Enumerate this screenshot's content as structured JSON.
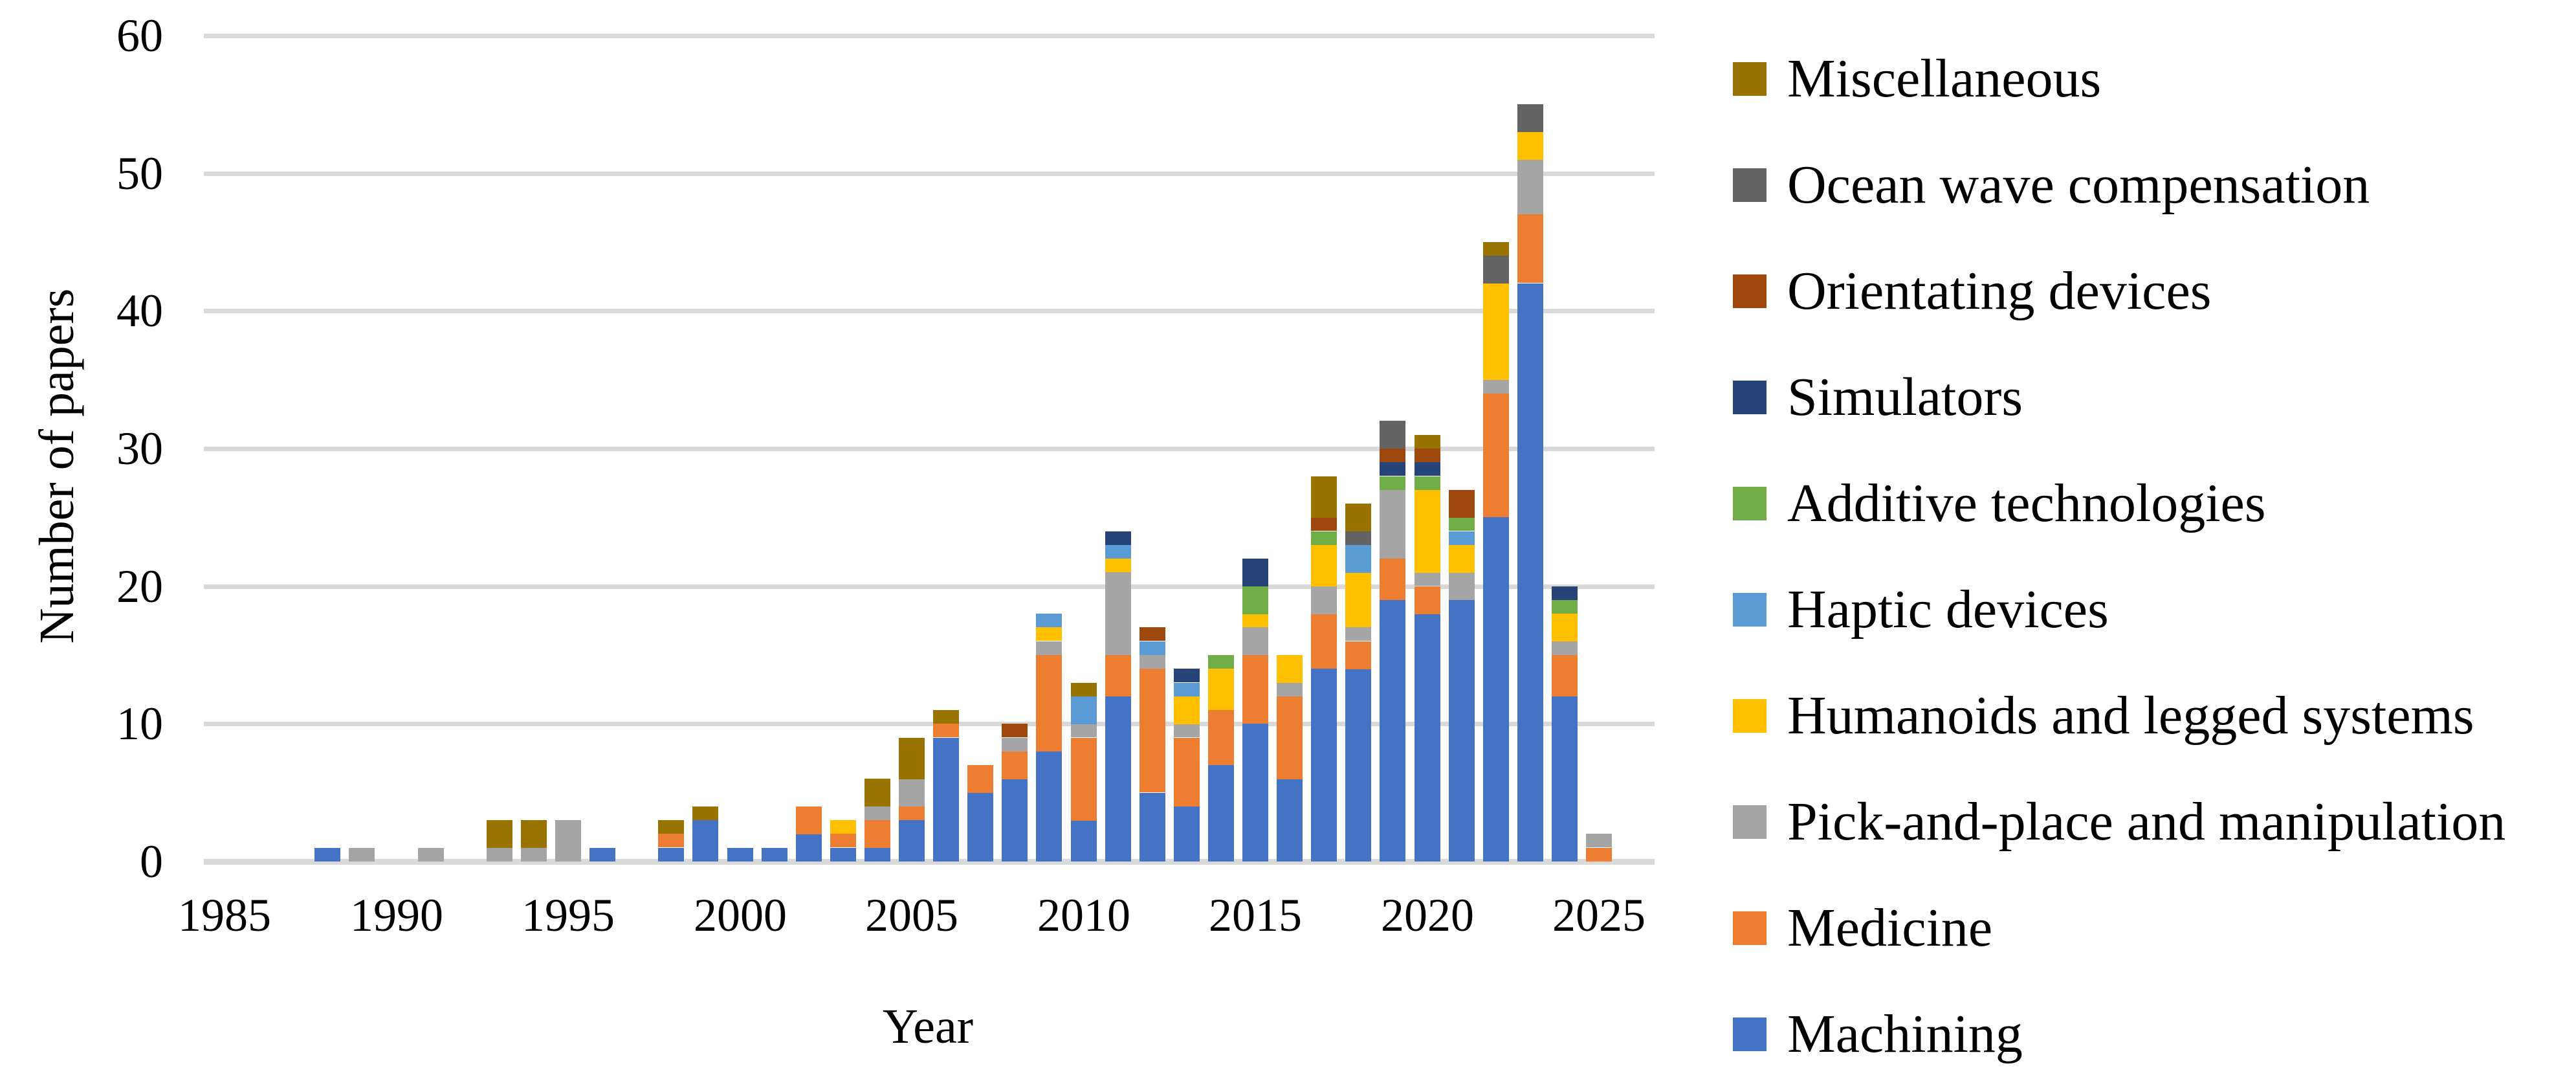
{
  "figure": {
    "y_axis_title": "Number of papers",
    "x_axis_title": "Year",
    "background_color": "#FFFFFF",
    "gridline_color": "#D9D9D9",
    "text_color": "#000000"
  },
  "chart_data": {
    "type": "bar",
    "stacked": true,
    "title": "",
    "xlabel": "Year",
    "ylabel": "Number of papers",
    "ylim": [
      0,
      60
    ],
    "y_ticks": [
      0,
      10,
      20,
      30,
      40,
      50,
      60
    ],
    "x_tick_labels": [
      "1985",
      "1990",
      "1995",
      "2000",
      "2005",
      "2010",
      "2015",
      "2020",
      "2025"
    ],
    "grid": "horizontal",
    "legend_position": "right",
    "legend_order_top_to_bottom": [
      "Miscellaneous",
      "Ocean wave compensation",
      "Orientating devices",
      "Simulators",
      "Additive technologies",
      "Haptic devices",
      "Humanoids and legged systems",
      "Pick-and-place and manipulation",
      "Medicine",
      "Machining"
    ],
    "categories": [
      1985,
      1986,
      1987,
      1988,
      1989,
      1990,
      1991,
      1992,
      1993,
      1994,
      1995,
      1996,
      1997,
      1998,
      1999,
      2000,
      2001,
      2002,
      2003,
      2004,
      2005,
      2006,
      2007,
      2008,
      2009,
      2010,
      2011,
      2012,
      2013,
      2014,
      2015,
      2016,
      2017,
      2018,
      2019,
      2020,
      2021,
      2022,
      2023,
      2024,
      2025
    ],
    "series": [
      {
        "name": "Machining",
        "color": "#4472C4",
        "values": [
          0,
          0,
          0,
          1,
          0,
          0,
          0,
          0,
          0,
          0,
          0,
          1,
          0,
          1,
          3,
          1,
          1,
          2,
          1,
          1,
          3,
          9,
          5,
          6,
          8,
          3,
          12,
          5,
          4,
          7,
          10,
          6,
          14,
          14,
          19,
          18,
          19,
          25,
          42,
          12,
          0
        ]
      },
      {
        "name": "Medicine",
        "color": "#ED7D31",
        "values": [
          0,
          0,
          0,
          0,
          0,
          0,
          0,
          0,
          0,
          0,
          0,
          0,
          0,
          1,
          0,
          0,
          0,
          2,
          1,
          2,
          1,
          1,
          2,
          2,
          7,
          6,
          3,
          9,
          5,
          4,
          5,
          6,
          4,
          2,
          3,
          2,
          0,
          9,
          5,
          3,
          1
        ]
      },
      {
        "name": "Pick-and-place and manipulation",
        "color": "#A5A5A5",
        "values": [
          0,
          0,
          0,
          0,
          1,
          0,
          1,
          0,
          1,
          1,
          3,
          0,
          0,
          0,
          0,
          0,
          0,
          0,
          0,
          1,
          2,
          0,
          0,
          1,
          1,
          1,
          6,
          1,
          1,
          0,
          2,
          1,
          2,
          1,
          5,
          1,
          2,
          1,
          4,
          1,
          1
        ]
      },
      {
        "name": "Humanoids and legged systems",
        "color": "#FFC000",
        "values": [
          0,
          0,
          0,
          0,
          0,
          0,
          0,
          0,
          0,
          0,
          0,
          0,
          0,
          0,
          0,
          0,
          0,
          0,
          1,
          0,
          0,
          0,
          0,
          0,
          1,
          0,
          1,
          0,
          2,
          3,
          1,
          2,
          3,
          4,
          0,
          6,
          2,
          7,
          2,
          2,
          0
        ]
      },
      {
        "name": "Haptic devices",
        "color": "#5B9BD5",
        "values": [
          0,
          0,
          0,
          0,
          0,
          0,
          0,
          0,
          0,
          0,
          0,
          0,
          0,
          0,
          0,
          0,
          0,
          0,
          0,
          0,
          0,
          0,
          0,
          0,
          1,
          2,
          1,
          1,
          1,
          0,
          0,
          0,
          0,
          2,
          0,
          0,
          1,
          0,
          0,
          0,
          0
        ]
      },
      {
        "name": "Additive technologies",
        "color": "#70AD47",
        "values": [
          0,
          0,
          0,
          0,
          0,
          0,
          0,
          0,
          0,
          0,
          0,
          0,
          0,
          0,
          0,
          0,
          0,
          0,
          0,
          0,
          0,
          0,
          0,
          0,
          0,
          0,
          0,
          0,
          0,
          1,
          2,
          0,
          1,
          0,
          1,
          1,
          1,
          0,
          0,
          1,
          0
        ]
      },
      {
        "name": "Simulators",
        "color": "#264478",
        "values": [
          0,
          0,
          0,
          0,
          0,
          0,
          0,
          0,
          0,
          0,
          0,
          0,
          0,
          0,
          0,
          0,
          0,
          0,
          0,
          0,
          0,
          0,
          0,
          0,
          0,
          0,
          1,
          0,
          1,
          0,
          2,
          0,
          0,
          0,
          1,
          1,
          0,
          0,
          0,
          1,
          0
        ]
      },
      {
        "name": "Orientating devices",
        "color": "#9E480E",
        "values": [
          0,
          0,
          0,
          0,
          0,
          0,
          0,
          0,
          0,
          0,
          0,
          0,
          0,
          0,
          0,
          0,
          0,
          0,
          0,
          0,
          0,
          0,
          0,
          1,
          0,
          0,
          0,
          1,
          0,
          0,
          0,
          0,
          1,
          0,
          1,
          1,
          2,
          0,
          0,
          0,
          0
        ]
      },
      {
        "name": "Ocean wave compensation",
        "color": "#636363",
        "values": [
          0,
          0,
          0,
          0,
          0,
          0,
          0,
          0,
          0,
          0,
          0,
          0,
          0,
          0,
          0,
          0,
          0,
          0,
          0,
          0,
          0,
          0,
          0,
          0,
          0,
          0,
          0,
          0,
          0,
          0,
          0,
          0,
          0,
          1,
          2,
          0,
          0,
          2,
          2,
          0,
          0
        ]
      },
      {
        "name": "Miscellaneous",
        "color": "#997300",
        "values": [
          0,
          0,
          0,
          0,
          0,
          0,
          0,
          0,
          2,
          2,
          0,
          0,
          0,
          1,
          1,
          0,
          0,
          0,
          0,
          2,
          3,
          1,
          0,
          0,
          0,
          1,
          0,
          0,
          0,
          0,
          0,
          0,
          3,
          2,
          0,
          1,
          0,
          1,
          0,
          0,
          0
        ]
      }
    ]
  }
}
